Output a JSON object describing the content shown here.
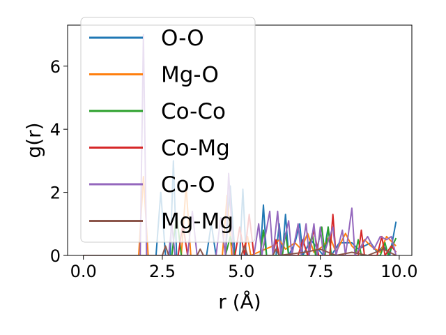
{
  "chart_data": {
    "type": "line",
    "title": "",
    "xlabel": "r (Å)",
    "ylabel": "g(r)",
    "xlim": [
      -0.5,
      10.4
    ],
    "ylim": [
      0,
      7.3
    ],
    "xticks": [
      0.0,
      2.5,
      5.0,
      7.5,
      10.0
    ],
    "xtick_labels": [
      "0.0",
      "2.5",
      "5.0",
      "7.5",
      "10.0"
    ],
    "yticks": [
      0,
      2,
      4,
      6
    ],
    "ytick_labels": [
      "0",
      "2",
      "4",
      "6"
    ],
    "grid": false,
    "legend_position": "top-left",
    "colors": {
      "O-O": "#1f77b4",
      "Mg-O": "#ff7f0e",
      "Co-Co": "#2ca02c",
      "Co-Mg": "#d62728",
      "Co-O": "#9467bd",
      "Mg-Mg": "#8c564b"
    },
    "series": [
      {
        "name": "O-O",
        "points": [
          [
            0,
            0
          ],
          [
            2.3,
            0
          ],
          [
            2.45,
            2.0
          ],
          [
            2.6,
            0
          ],
          [
            2.75,
            0
          ],
          [
            2.85,
            3.0
          ],
          [
            2.95,
            0
          ],
          [
            3.9,
            0
          ],
          [
            4.05,
            1.0
          ],
          [
            4.2,
            0
          ],
          [
            4.5,
            0
          ],
          [
            4.65,
            2.2
          ],
          [
            4.8,
            0
          ],
          [
            4.95,
            0
          ],
          [
            5.05,
            2.1
          ],
          [
            5.15,
            0
          ],
          [
            5.6,
            0
          ],
          [
            5.7,
            1.6
          ],
          [
            5.8,
            0
          ],
          [
            6.1,
            0
          ],
          [
            6.2,
            1.0
          ],
          [
            6.3,
            0
          ],
          [
            6.4,
            1.3
          ],
          [
            6.5,
            0
          ],
          [
            6.7,
            0.4
          ],
          [
            6.85,
            1.0
          ],
          [
            6.95,
            0
          ],
          [
            7.2,
            0.5
          ],
          [
            7.35,
            0.3
          ],
          [
            7.6,
            0
          ],
          [
            7.75,
            0.9
          ],
          [
            7.85,
            0
          ],
          [
            8.1,
            0.4
          ],
          [
            8.3,
            0.4
          ],
          [
            8.5,
            0.4
          ],
          [
            8.7,
            0.2
          ],
          [
            8.9,
            0.3
          ],
          [
            9.1,
            0.4
          ],
          [
            9.3,
            0.1
          ],
          [
            9.5,
            0.3
          ],
          [
            9.7,
            0
          ],
          [
            9.9,
            1.07
          ]
        ]
      },
      {
        "name": "Mg-O",
        "points": [
          [
            0,
            0
          ],
          [
            1.75,
            0
          ],
          [
            1.9,
            2.5
          ],
          [
            2.05,
            0
          ],
          [
            3.1,
            0
          ],
          [
            3.25,
            2.2
          ],
          [
            3.4,
            0
          ],
          [
            4.4,
            0
          ],
          [
            4.55,
            1.9
          ],
          [
            4.7,
            0
          ],
          [
            5.0,
            0
          ],
          [
            5.2,
            0.6
          ],
          [
            5.3,
            0
          ],
          [
            6.0,
            0.3
          ],
          [
            6.2,
            0.5
          ],
          [
            6.4,
            0.2
          ],
          [
            6.7,
            0.4
          ],
          [
            6.9,
            0.2
          ],
          [
            7.1,
            0.7
          ],
          [
            7.3,
            0.1
          ],
          [
            7.6,
            0.3
          ],
          [
            7.8,
            0.6
          ],
          [
            8.0,
            0.1
          ],
          [
            8.3,
            0.7
          ],
          [
            8.5,
            0.3
          ],
          [
            8.7,
            0.1
          ],
          [
            8.9,
            0.5
          ],
          [
            9.1,
            0.3
          ],
          [
            9.4,
            0.1
          ],
          [
            9.6,
            0.6
          ],
          [
            9.9,
            0.3
          ]
        ]
      },
      {
        "name": "Co-Co",
        "points": [
          [
            0,
            0
          ],
          [
            2.8,
            0
          ],
          [
            2.95,
            1.3
          ],
          [
            3.1,
            0
          ],
          [
            4.5,
            0
          ],
          [
            4.65,
            0.6
          ],
          [
            4.8,
            0
          ],
          [
            5.6,
            0
          ],
          [
            5.7,
            0.8
          ],
          [
            5.8,
            0
          ],
          [
            6.3,
            0
          ],
          [
            6.4,
            0.7
          ],
          [
            6.5,
            0
          ],
          [
            7.1,
            0
          ],
          [
            7.25,
            0.7
          ],
          [
            7.35,
            0
          ],
          [
            7.55,
            0.9
          ],
          [
            7.65,
            0
          ],
          [
            7.75,
            0.9
          ],
          [
            7.85,
            0
          ],
          [
            8.6,
            0
          ],
          [
            8.7,
            0.5
          ],
          [
            8.8,
            0
          ],
          [
            9.4,
            0
          ],
          [
            9.55,
            0.4
          ],
          [
            9.65,
            0
          ],
          [
            9.9,
            0.55
          ]
        ]
      },
      {
        "name": "Co-Mg",
        "points": [
          [
            0,
            0
          ],
          [
            3.0,
            0
          ],
          [
            3.15,
            1.0
          ],
          [
            3.3,
            0
          ],
          [
            4.8,
            0
          ],
          [
            4.95,
            0.9
          ],
          [
            5.1,
            0
          ],
          [
            5.25,
            1.3
          ],
          [
            5.4,
            0
          ],
          [
            6.0,
            0
          ],
          [
            6.1,
            0.5
          ],
          [
            6.2,
            0
          ],
          [
            6.8,
            0
          ],
          [
            6.95,
            0.5
          ],
          [
            7.1,
            0
          ],
          [
            7.3,
            0.8
          ],
          [
            7.45,
            0
          ],
          [
            7.8,
            0
          ],
          [
            7.9,
            1.3
          ],
          [
            8.0,
            0
          ],
          [
            8.7,
            0
          ],
          [
            8.8,
            0.8
          ],
          [
            8.9,
            0
          ],
          [
            9.3,
            0
          ],
          [
            9.45,
            0.6
          ],
          [
            9.55,
            0
          ],
          [
            9.75,
            0.3
          ],
          [
            9.9,
            0.1
          ]
        ]
      },
      {
        "name": "Co-O",
        "points": [
          [
            0,
            0
          ],
          [
            1.8,
            0
          ],
          [
            1.9,
            7.0
          ],
          [
            2.0,
            0
          ],
          [
            2.7,
            0
          ],
          [
            2.8,
            1.0
          ],
          [
            2.9,
            0
          ],
          [
            3.3,
            0
          ],
          [
            3.45,
            1.4
          ],
          [
            3.6,
            0
          ],
          [
            4.2,
            0
          ],
          [
            4.35,
            1.2
          ],
          [
            4.5,
            0
          ],
          [
            4.6,
            2.6
          ],
          [
            4.75,
            0
          ],
          [
            5.4,
            0
          ],
          [
            5.55,
            1.0
          ],
          [
            5.65,
            0
          ],
          [
            5.9,
            1.4
          ],
          [
            6.0,
            0
          ],
          [
            6.15,
            1.4
          ],
          [
            6.25,
            0
          ],
          [
            6.5,
            1.1
          ],
          [
            6.6,
            0
          ],
          [
            6.8,
            1.0
          ],
          [
            6.9,
            0
          ],
          [
            7.05,
            1.0
          ],
          [
            7.15,
            0
          ],
          [
            7.3,
            1.0
          ],
          [
            7.4,
            0
          ],
          [
            7.5,
            0.9
          ],
          [
            7.6,
            0
          ],
          [
            7.9,
            0.9
          ],
          [
            8.0,
            0
          ],
          [
            8.2,
            0.8
          ],
          [
            8.3,
            0
          ],
          [
            8.5,
            1.5
          ],
          [
            8.6,
            0
          ],
          [
            8.8,
            0.3
          ],
          [
            9.0,
            0.6
          ],
          [
            9.2,
            0.2
          ],
          [
            9.4,
            0.6
          ],
          [
            9.6,
            0.5
          ],
          [
            9.75,
            0.6
          ],
          [
            9.9,
            0
          ]
        ]
      },
      {
        "name": "Mg-Mg",
        "points": [
          [
            0,
            0
          ],
          [
            2.5,
            0
          ],
          [
            2.6,
            0.3
          ],
          [
            2.7,
            0
          ],
          [
            3.6,
            0
          ],
          [
            3.7,
            0.2
          ],
          [
            3.8,
            0
          ],
          [
            5.0,
            0
          ],
          [
            5.1,
            0.3
          ],
          [
            5.2,
            0
          ],
          [
            6.0,
            0
          ],
          [
            6.1,
            0.2
          ],
          [
            6.2,
            0
          ],
          [
            7.0,
            0.1
          ],
          [
            7.5,
            0.2
          ],
          [
            8.0,
            0
          ],
          [
            8.5,
            0.1
          ],
          [
            9.0,
            0
          ],
          [
            9.5,
            0.2
          ],
          [
            9.9,
            0
          ]
        ]
      }
    ]
  }
}
